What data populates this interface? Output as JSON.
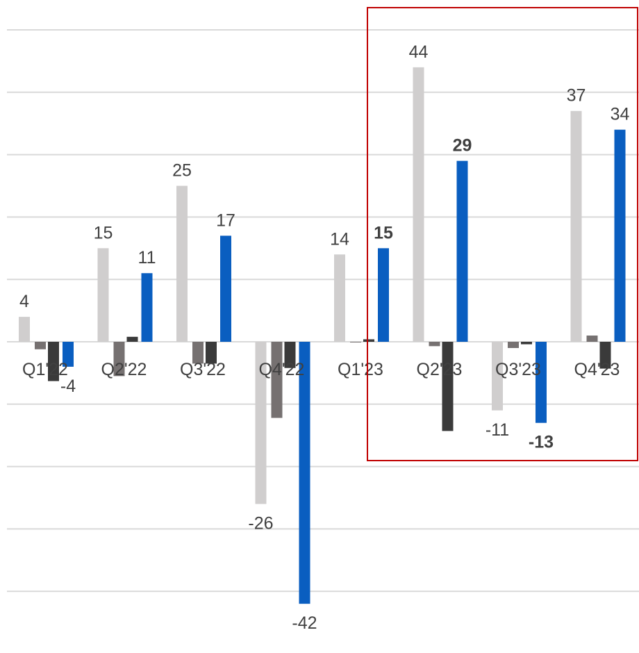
{
  "chart_data": {
    "type": "bar",
    "categories": [
      "Q1'22",
      "Q2'22",
      "Q3'22",
      "Q4'22",
      "Q1'23",
      "Q2'23",
      "Q3'23",
      "Q4'23"
    ],
    "series": [
      {
        "color": "#d0cece",
        "values": [
          4,
          15,
          25,
          -26,
          14,
          44,
          -11,
          37
        ],
        "labels": [
          "4",
          "15",
          "25",
          "-26",
          "14",
          "44",
          "-11",
          "37"
        ],
        "label_bold": false
      },
      {
        "color": "#767171",
        "values": [
          -1.2,
          -5.5,
          -3.5,
          -12.2,
          -0.1,
          -0.7,
          -1,
          1
        ]
      },
      {
        "color": "#3a3a3a",
        "values": [
          -6.3,
          0.8,
          -3.5,
          -4.2,
          0.4,
          -14.3,
          -0.4,
          -4.3
        ]
      },
      {
        "color": "#0a5ec0",
        "values": [
          -4,
          11,
          17,
          -42,
          15,
          29,
          -13,
          34
        ],
        "labels": [
          "-4",
          "11",
          "17",
          "-42",
          "15",
          "29",
          "-13",
          "34"
        ],
        "label_bold": [
          false,
          false,
          false,
          false,
          true,
          true,
          true,
          false
        ]
      }
    ],
    "ylim": [
      -40,
      50
    ],
    "grid": true,
    "legend": "none",
    "highlight": {
      "from_category": "Q1'23",
      "to_category": "Q4'23",
      "color": "#c00000"
    }
  }
}
